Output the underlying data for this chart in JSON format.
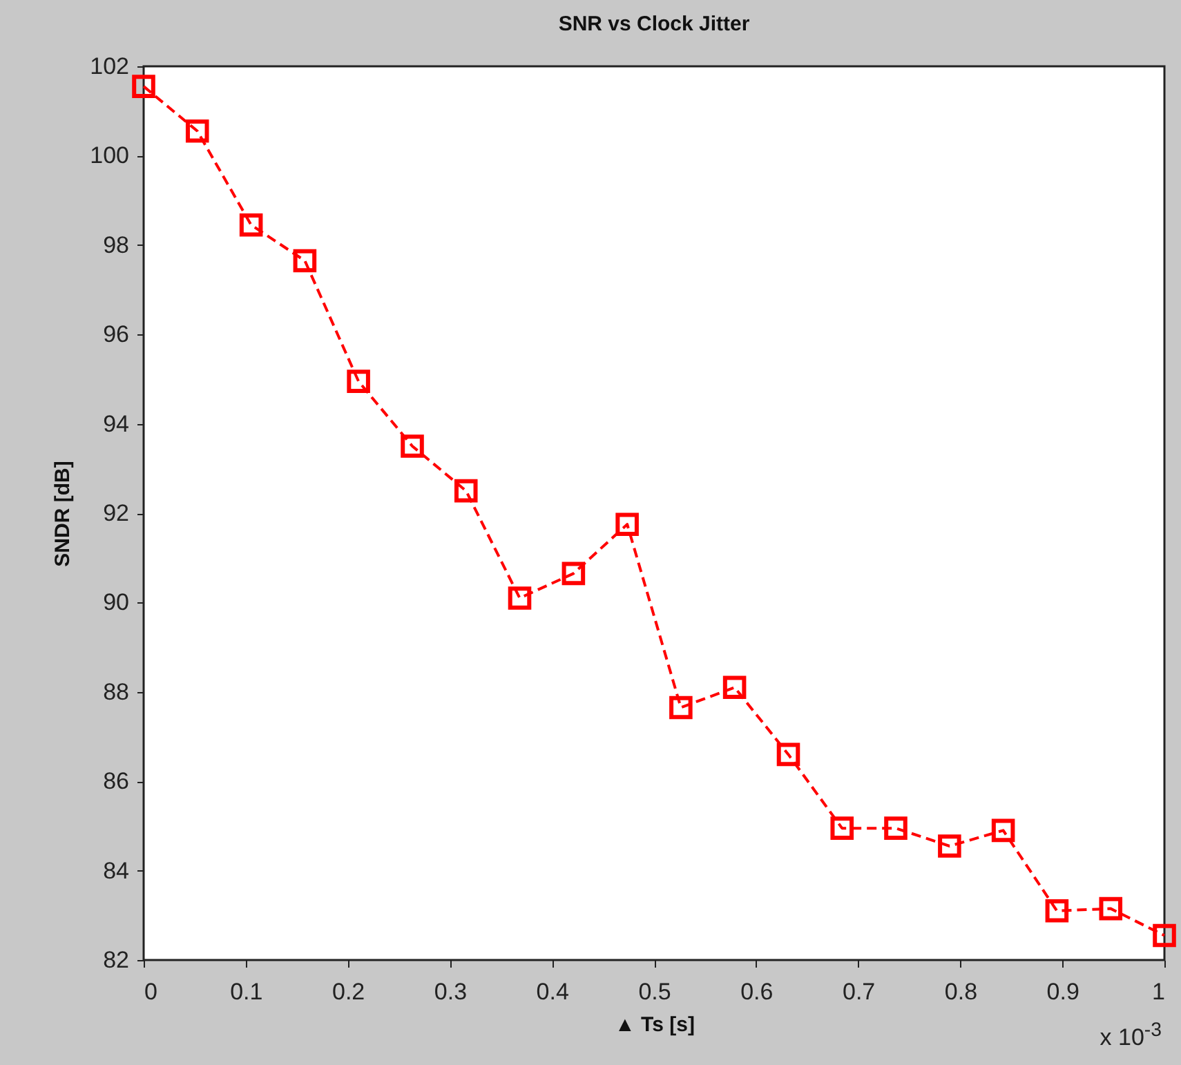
{
  "chart_data": {
    "type": "line",
    "title": "SNR vs Clock Jitter",
    "xlabel": "▲ Ts [s]",
    "ylabel": "SNDR [dB]",
    "annotations": [
      "x 10$^{-3}$"
    ],
    "x": [
      0,
      0.0526,
      0.1053,
      0.1579,
      0.2105,
      0.2632,
      0.3158,
      0.3684,
      0.4211,
      0.4737,
      0.5263,
      0.5789,
      0.6316,
      0.6842,
      0.7368,
      0.7895,
      0.8421,
      0.8947,
      0.9474,
      1
    ],
    "series": [
      {
        "color": "#ff0000",
        "values": [
          101.55,
          100.55,
          98.45,
          97.65,
          94.95,
          93.5,
          92.5,
          90.1,
          90.65,
          91.75,
          87.65,
          88.1,
          86.6,
          84.95,
          84.95,
          84.55,
          84.9,
          83.1,
          83.15,
          82.55
        ]
      }
    ],
    "xlim": [
      0,
      1
    ],
    "xticks": [
      0,
      0.1,
      0.2,
      0.3,
      0.4,
      0.5,
      0.6,
      0.7,
      0.8,
      0.9,
      1
    ],
    "ylim": [
      82,
      102
    ],
    "yticks": [
      82,
      84,
      86,
      88,
      90,
      92,
      94,
      96,
      98,
      100,
      102
    ],
    "grid": false,
    "legend": false,
    "marker": "square",
    "line_style": "dashed"
  }
}
